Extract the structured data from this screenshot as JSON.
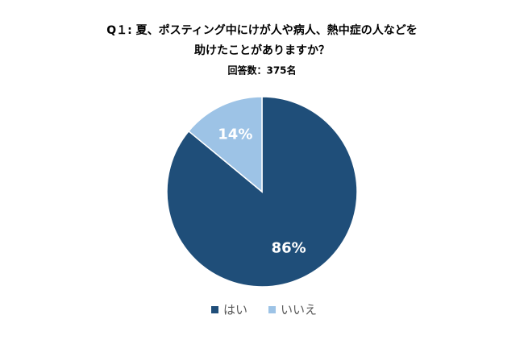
{
  "chart_data": {
    "type": "pie",
    "title": [
      "Q１: 夏、ポスティング中にけが人や病人、熱中症の人などを",
      "助けたことがありますか？"
    ],
    "subtitle": "回答数：375名",
    "categories": [
      "はい",
      "いいえ"
    ],
    "values": [
      86,
      14
    ],
    "value_labels": [
      "86%",
      "14%"
    ],
    "colors": [
      "#1f4e79",
      "#9dc3e6"
    ]
  }
}
